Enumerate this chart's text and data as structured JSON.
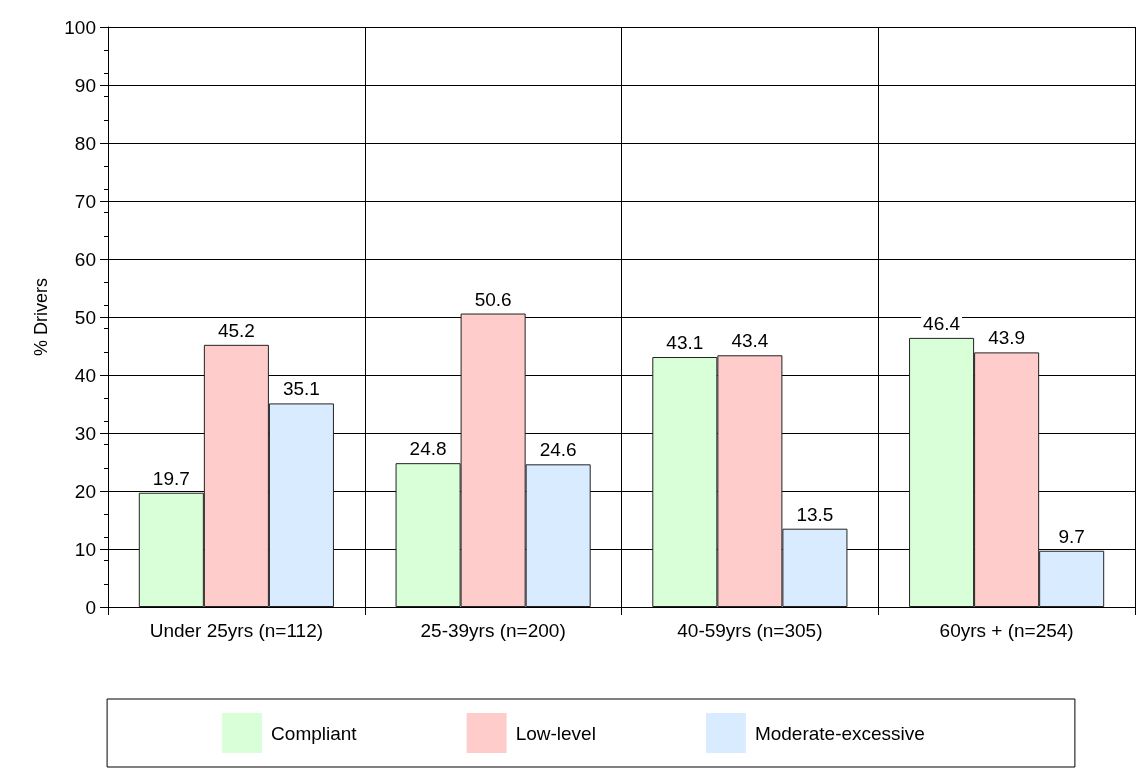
{
  "chart_data": {
    "type": "bar",
    "ylabel": "% Drivers",
    "categories": [
      "Under 25yrs (n=112)",
      "25-39yrs (n=200)",
      "40-59yrs (n=305)",
      "60yrs + (n=254)"
    ],
    "series": [
      {
        "name": "Compliant",
        "color": "#d9ffd9",
        "values": [
          19.7,
          24.8,
          43.1,
          46.4
        ]
      },
      {
        "name": "Low-level",
        "color": "#ffcccc",
        "values": [
          45.2,
          50.6,
          43.4,
          43.9
        ]
      },
      {
        "name": "Moderate-excessive",
        "color": "#d9ebff",
        "values": [
          35.1,
          24.6,
          13.5,
          9.7
        ]
      }
    ],
    "ylim": [
      0,
      100
    ],
    "yticks": [
      0,
      10,
      20,
      30,
      40,
      50,
      60,
      70,
      80,
      90,
      100
    ],
    "grid": true,
    "legend": "bottom",
    "data_labels": true
  }
}
